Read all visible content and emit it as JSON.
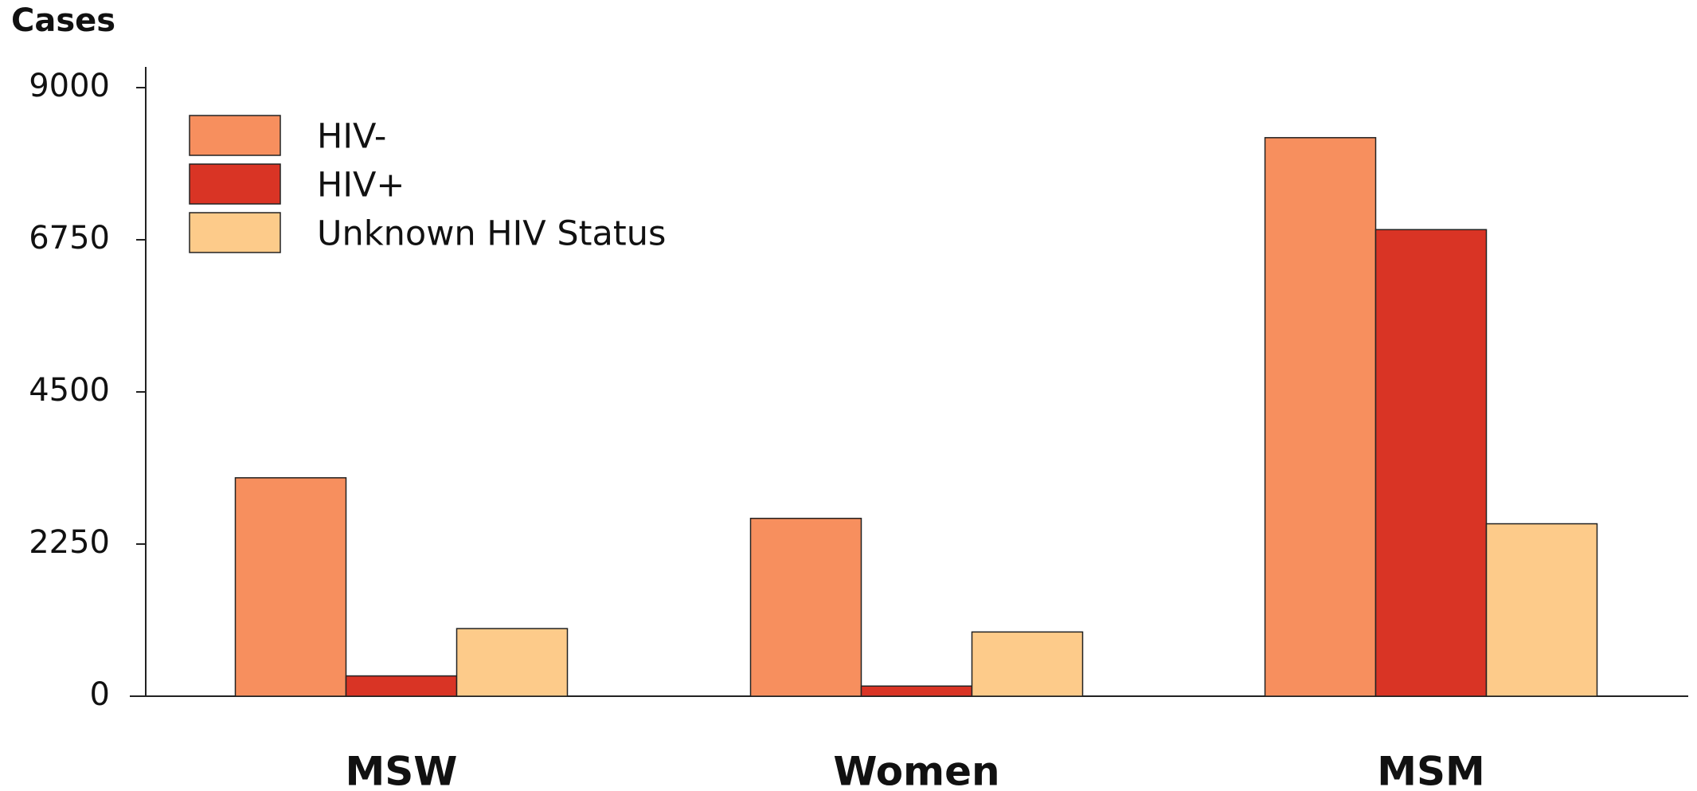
{
  "chart_data": {
    "type": "bar",
    "y_label": "Cases",
    "categories": [
      "MSW",
      "Women",
      "MSM"
    ],
    "series": [
      {
        "name": "HIV-",
        "color": "#f78f5e",
        "values": [
          3230,
          2630,
          8260
        ]
      },
      {
        "name": "HIV+",
        "color": "#d93425",
        "values": [
          300,
          150,
          6900
        ]
      },
      {
        "name": "Unknown HIV Status",
        "color": "#fdcb8a",
        "values": [
          1000,
          950,
          2550
        ]
      }
    ],
    "ylim": [
      0,
      9000
    ],
    "yticks": [
      0,
      2250,
      4500,
      6750,
      9000
    ],
    "legend": "upper left"
  }
}
